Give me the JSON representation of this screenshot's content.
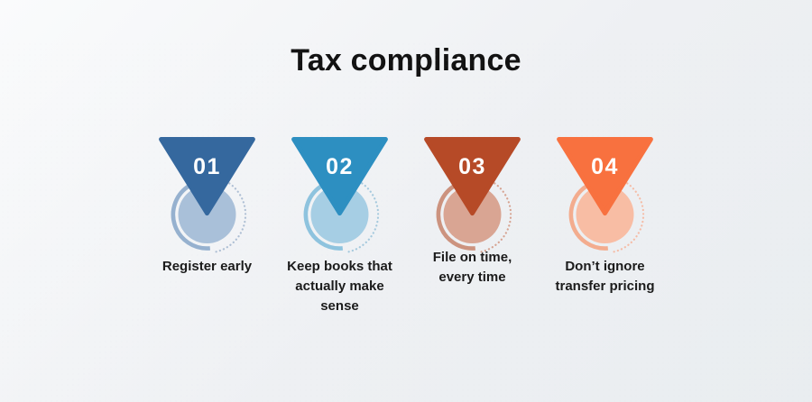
{
  "title": "Tax compliance",
  "colors": {
    "background_start": "#fafbfc",
    "background_mid": "#eef0f3",
    "background_end": "#e9edf0",
    "title_text": "#121212",
    "label_text": "#1b1b1b"
  },
  "items": [
    {
      "number": "01",
      "label": "Register early",
      "label_lines": [
        "Register early"
      ],
      "triangle_color": "#35689e",
      "circle_color": "#a9c0d9",
      "ring_color": "#96b1cf",
      "dotted_color": "#aebfd4",
      "number_color": "#ffffff"
    },
    {
      "number": "02",
      "label": "Keep books that actually make sense",
      "label_lines": [
        "Keep books that",
        "actually make",
        "sense"
      ],
      "triangle_color": "#2d8fc1",
      "circle_color": "#a6cee4",
      "ring_color": "#8ec3de",
      "dotted_color": "#a5c9dd",
      "number_color": "#ffffff"
    },
    {
      "number": "03",
      "label": "File on time, every time",
      "label_lines": [
        "File on time,",
        "every time"
      ],
      "triangle_color": "#b64a27",
      "circle_color": "#d9a593",
      "ring_color": "#cc937f",
      "dotted_color": "#d6a391",
      "number_color": "#ffffff"
    },
    {
      "number": "04",
      "label": "Don’t ignore transfer pricing",
      "label_lines": [
        "Don’t ignore",
        "transfer pricing"
      ],
      "triangle_color": "#f8713f",
      "circle_color": "#f8bda4",
      "ring_color": "#f3ac8e",
      "dotted_color": "#f5bca6",
      "number_color": "#ffffff"
    }
  ]
}
